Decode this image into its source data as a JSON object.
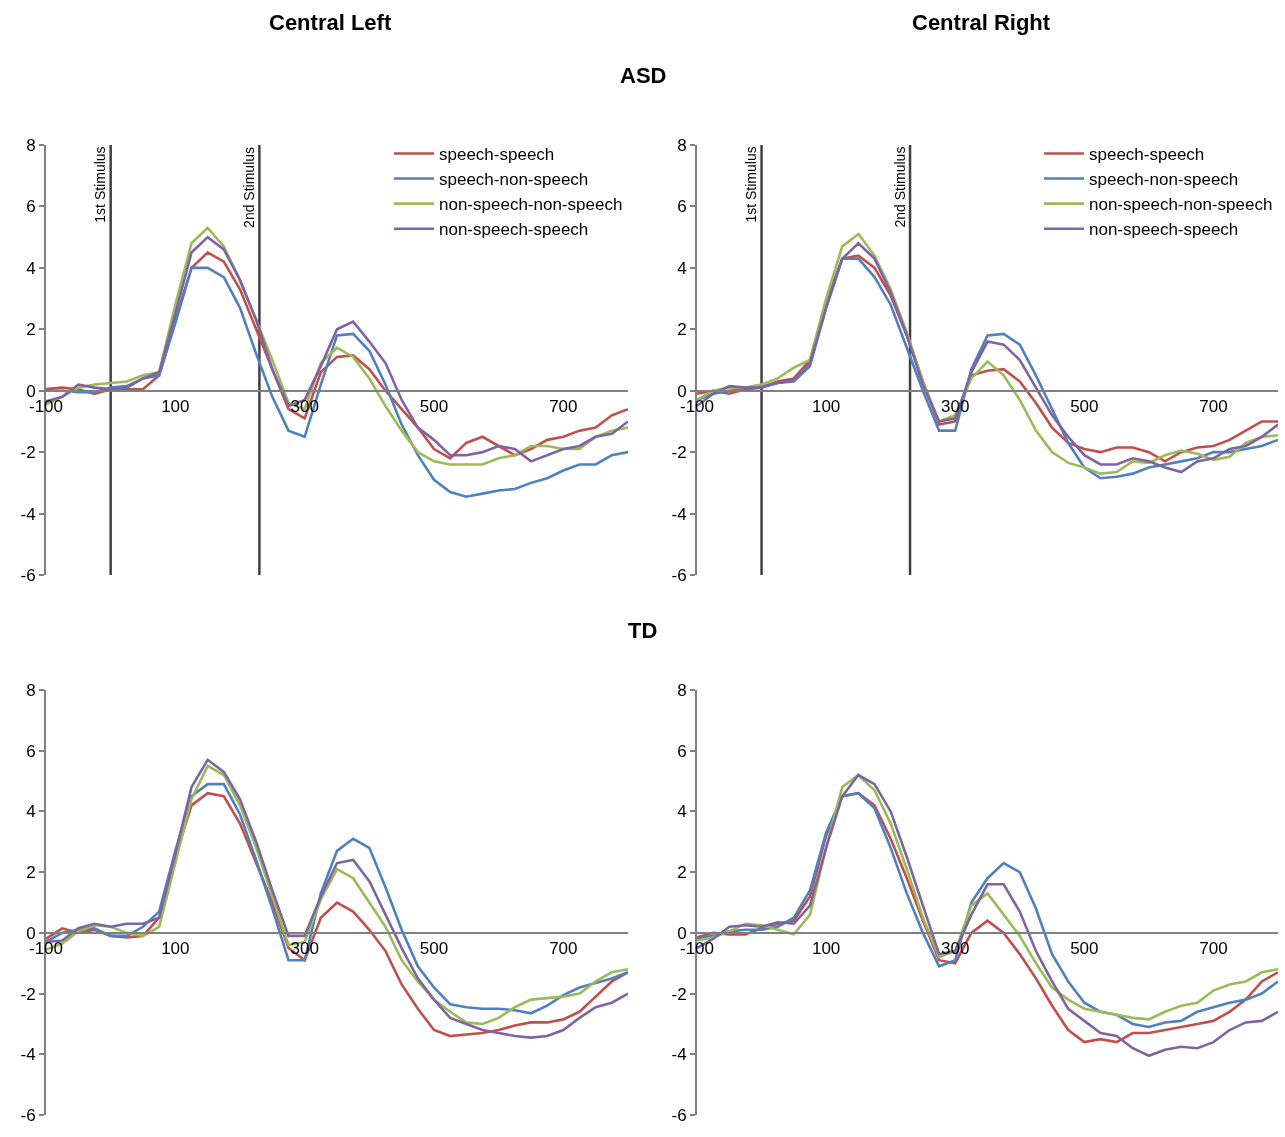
{
  "chart_data": [
    {
      "type": "line",
      "title": "Central Left",
      "subtitle": "ASD",
      "legend": "top right",
      "x": [
        -100,
        -75,
        -50,
        -25,
        0,
        25,
        50,
        75,
        100,
        125,
        150,
        175,
        200,
        225,
        250,
        275,
        300,
        325,
        350,
        375,
        400,
        425,
        450,
        475,
        500,
        525,
        550,
        575,
        600,
        625,
        650,
        675,
        700,
        725,
        750,
        775,
        800
      ],
      "xlim": [
        -100,
        800
      ],
      "xticks": [
        -100,
        100,
        300,
        500,
        700
      ],
      "ylim": [
        -6,
        8
      ],
      "yticks": [
        -6,
        -4,
        -2,
        0,
        2,
        4,
        6,
        8
      ],
      "ref_lines": [
        {
          "axis": "x",
          "value": 0,
          "label": "1st Stimulus",
          "color": "#404040"
        },
        {
          "axis": "x",
          "value": 230,
          "label": "2nd Stimulus",
          "color": "#404040"
        }
      ],
      "series": [
        {
          "name": "speech-speech",
          "color": "#c0504d",
          "values": [
            0.05,
            0.1,
            0.05,
            -0.1,
            0.05,
            0.05,
            0.05,
            0.5,
            2.3,
            4.0,
            4.5,
            4.2,
            3.3,
            2.0,
            0.7,
            -0.6,
            -0.9,
            0.6,
            1.1,
            1.15,
            0.7,
            0.0,
            -0.6,
            -1.2,
            -1.9,
            -2.2,
            -1.7,
            -1.5,
            -1.8,
            -2.1,
            -1.9,
            -1.6,
            -1.5,
            -1.3,
            -1.2,
            -0.8,
            -0.6
          ]
        },
        {
          "name": "speech-non-speech",
          "color": "#4f81bd",
          "values": [
            0.0,
            0.0,
            -0.05,
            -0.05,
            0.1,
            0.15,
            0.4,
            0.5,
            2.2,
            4.0,
            4.0,
            3.7,
            2.7,
            1.2,
            -0.2,
            -1.3,
            -1.5,
            0.2,
            1.8,
            1.85,
            1.3,
            0.2,
            -1.1,
            -2.1,
            -2.9,
            -3.3,
            -3.45,
            -3.35,
            -3.25,
            -3.2,
            -3.0,
            -2.85,
            -2.6,
            -2.4,
            -2.4,
            -2.1,
            -2.0
          ]
        },
        {
          "name": "non-speech-non-speech",
          "color": "#9bbb59",
          "values": [
            -0.45,
            -0.2,
            0.1,
            0.2,
            0.25,
            0.3,
            0.5,
            0.6,
            2.8,
            4.8,
            5.3,
            4.7,
            3.6,
            2.3,
            1.0,
            -0.4,
            -0.6,
            0.9,
            1.4,
            1.1,
            0.4,
            -0.5,
            -1.3,
            -2.0,
            -2.3,
            -2.4,
            -2.4,
            -2.4,
            -2.2,
            -2.1,
            -1.8,
            -1.8,
            -1.9,
            -1.9,
            -1.5,
            -1.3,
            -1.2
          ]
        },
        {
          "name": "non-speech-speech",
          "color": "#8064a2",
          "values": [
            -0.35,
            -0.2,
            0.2,
            0.1,
            0.05,
            0.1,
            0.4,
            0.6,
            2.5,
            4.5,
            5.0,
            4.6,
            3.6,
            2.3,
            0.7,
            -0.5,
            -0.3,
            0.8,
            2.0,
            2.25,
            1.6,
            0.9,
            -0.3,
            -1.2,
            -1.6,
            -2.1,
            -2.1,
            -2.0,
            -1.8,
            -1.9,
            -2.3,
            -2.1,
            -1.9,
            -1.8,
            -1.5,
            -1.4,
            -1.0
          ]
        }
      ]
    },
    {
      "type": "line",
      "title": "Central Right",
      "legend": "top right",
      "x": [
        -100,
        -75,
        -50,
        -25,
        0,
        25,
        50,
        75,
        100,
        125,
        150,
        175,
        200,
        225,
        250,
        275,
        300,
        325,
        350,
        375,
        400,
        425,
        450,
        475,
        500,
        525,
        550,
        575,
        600,
        625,
        650,
        675,
        700,
        725,
        750,
        775,
        800
      ],
      "xlim": [
        -100,
        800
      ],
      "xticks": [
        -100,
        100,
        300,
        500,
        700
      ],
      "ylim": [
        -6,
        8
      ],
      "yticks": [
        -6,
        -4,
        -2,
        0,
        2,
        4,
        6,
        8
      ],
      "ref_lines": [
        {
          "axis": "x",
          "value": 0,
          "label": "1st Stimulus",
          "color": "#404040"
        },
        {
          "axis": "x",
          "value": 230,
          "label": "2nd Stimulus",
          "color": "#404040"
        }
      ],
      "series": [
        {
          "name": "speech-speech",
          "color": "#c0504d",
          "values": [
            -0.1,
            0.0,
            -0.1,
            0.05,
            0.1,
            0.3,
            0.4,
            1.0,
            2.9,
            4.3,
            4.4,
            4.0,
            3.1,
            1.8,
            0.3,
            -1.1,
            -1.0,
            0.5,
            0.65,
            0.7,
            0.3,
            -0.4,
            -1.2,
            -1.7,
            -1.9,
            -2.0,
            -1.85,
            -1.85,
            -2.0,
            -2.3,
            -2.0,
            -1.85,
            -1.8,
            -1.6,
            -1.3,
            -1.0,
            -1.0
          ]
        },
        {
          "name": "speech-non-speech",
          "color": "#4f81bd",
          "values": [
            -0.3,
            -0.1,
            0.0,
            0.05,
            0.15,
            0.25,
            0.3,
            0.8,
            2.7,
            4.3,
            4.3,
            3.7,
            2.8,
            1.4,
            0.0,
            -1.3,
            -1.3,
            0.7,
            1.8,
            1.85,
            1.5,
            0.5,
            -0.6,
            -1.7,
            -2.5,
            -2.85,
            -2.8,
            -2.7,
            -2.5,
            -2.4,
            -2.3,
            -2.2,
            -2.0,
            -2.0,
            -1.9,
            -1.8,
            -1.6
          ]
        },
        {
          "name": "non-speech-non-speech",
          "color": "#9bbb59",
          "values": [
            -0.3,
            0.0,
            0.1,
            0.1,
            0.2,
            0.4,
            0.75,
            1.0,
            3.0,
            4.7,
            5.1,
            4.4,
            3.3,
            1.9,
            0.3,
            -1.0,
            -0.8,
            0.4,
            0.95,
            0.5,
            -0.3,
            -1.3,
            -2.0,
            -2.35,
            -2.5,
            -2.7,
            -2.65,
            -2.3,
            -2.35,
            -2.1,
            -1.95,
            -2.05,
            -2.25,
            -2.15,
            -1.7,
            -1.5,
            -1.45
          ]
        },
        {
          "name": "non-speech-speech",
          "color": "#8064a2",
          "values": [
            -0.5,
            -0.1,
            0.15,
            0.1,
            0.1,
            0.25,
            0.35,
            0.9,
            2.7,
            4.3,
            4.8,
            4.3,
            3.2,
            1.8,
            0.2,
            -1.0,
            -0.9,
            0.6,
            1.6,
            1.5,
            1.0,
            0.1,
            -0.8,
            -1.5,
            -2.1,
            -2.4,
            -2.4,
            -2.2,
            -2.3,
            -2.5,
            -2.65,
            -2.3,
            -2.2,
            -1.9,
            -1.8,
            -1.5,
            -1.1
          ]
        }
      ]
    },
    {
      "type": "line",
      "title": "TD",
      "x": [
        -100,
        -75,
        -50,
        -25,
        0,
        25,
        50,
        75,
        100,
        125,
        150,
        175,
        200,
        225,
        250,
        275,
        300,
        325,
        350,
        375,
        400,
        425,
        450,
        475,
        500,
        525,
        550,
        575,
        600,
        625,
        650,
        675,
        700,
        725,
        750,
        775,
        800
      ],
      "xlim": [
        -100,
        800
      ],
      "xticks": [
        -100,
        100,
        300,
        500,
        700
      ],
      "ylim": [
        -6,
        8
      ],
      "yticks": [
        -6,
        -4,
        -2,
        0,
        2,
        4,
        6,
        8
      ],
      "series": [
        {
          "color": "#c0504d",
          "values": [
            -0.2,
            0.15,
            0.0,
            0.1,
            -0.1,
            -0.15,
            -0.1,
            0.5,
            2.5,
            4.2,
            4.6,
            4.5,
            3.6,
            2.3,
            1.0,
            -0.5,
            -0.9,
            0.5,
            1.0,
            0.7,
            0.1,
            -0.6,
            -1.7,
            -2.5,
            -3.2,
            -3.4,
            -3.35,
            -3.3,
            -3.2,
            -3.05,
            -2.95,
            -2.95,
            -2.85,
            -2.6,
            -2.1,
            -1.6,
            -1.3
          ]
        },
        {
          "color": "#4f81bd",
          "values": [
            -0.3,
            0.0,
            0.1,
            0.15,
            -0.1,
            -0.1,
            0.2,
            0.7,
            2.7,
            4.5,
            4.9,
            4.9,
            3.9,
            2.4,
            0.8,
            -0.9,
            -0.9,
            1.3,
            2.7,
            3.1,
            2.8,
            1.5,
            0.1,
            -1.1,
            -1.8,
            -2.35,
            -2.45,
            -2.5,
            -2.5,
            -2.55,
            -2.65,
            -2.4,
            -2.05,
            -1.8,
            -1.65,
            -1.5,
            -1.3
          ]
        },
        {
          "color": "#9bbb59",
          "values": [
            -0.55,
            -0.35,
            0.05,
            0.25,
            0.2,
            0.0,
            -0.1,
            0.2,
            2.3,
            4.4,
            5.5,
            5.2,
            4.2,
            2.8,
            1.2,
            -0.4,
            -0.3,
            1.1,
            2.1,
            1.8,
            1.0,
            0.2,
            -0.9,
            -1.6,
            -2.2,
            -2.6,
            -2.95,
            -3.0,
            -2.8,
            -2.45,
            -2.2,
            -2.15,
            -2.1,
            -2.0,
            -1.6,
            -1.3,
            -1.2
          ]
        },
        {
          "color": "#8064a2",
          "values": [
            -0.3,
            -0.25,
            0.15,
            0.3,
            0.2,
            0.3,
            0.3,
            0.5,
            2.6,
            4.8,
            5.7,
            5.3,
            4.4,
            3.0,
            1.4,
            -0.1,
            -0.1,
            1.2,
            2.3,
            2.4,
            1.7,
            0.6,
            -0.5,
            -1.5,
            -2.2,
            -2.8,
            -3.0,
            -3.2,
            -3.3,
            -3.4,
            -3.45,
            -3.4,
            -3.2,
            -2.8,
            -2.45,
            -2.3,
            -2.0
          ]
        }
      ]
    },
    {
      "type": "line",
      "x": [
        -100,
        -75,
        -50,
        -25,
        0,
        25,
        50,
        75,
        100,
        125,
        150,
        175,
        200,
        225,
        250,
        275,
        300,
        325,
        350,
        375,
        400,
        425,
        450,
        475,
        500,
        525,
        550,
        575,
        600,
        625,
        650,
        675,
        700,
        725,
        750,
        775,
        800
      ],
      "xlim": [
        -100,
        800
      ],
      "xticks": [
        -100,
        100,
        300,
        500,
        700
      ],
      "ylim": [
        -6,
        8
      ],
      "yticks": [
        -6,
        -4,
        -2,
        0,
        2,
        4,
        6,
        8
      ],
      "series": [
        {
          "color": "#c0504d",
          "values": [
            -0.15,
            0.0,
            -0.05,
            -0.05,
            0.15,
            0.3,
            0.4,
            1.2,
            3.2,
            4.5,
            4.6,
            4.2,
            3.1,
            1.8,
            0.4,
            -0.9,
            -1.0,
            0.0,
            0.4,
            0.0,
            -0.7,
            -1.5,
            -2.4,
            -3.2,
            -3.6,
            -3.5,
            -3.6,
            -3.3,
            -3.3,
            -3.2,
            -3.1,
            -3.0,
            -2.9,
            -2.6,
            -2.2,
            -1.6,
            -1.3
          ]
        },
        {
          "color": "#4f81bd",
          "values": [
            -0.2,
            -0.1,
            0.05,
            0.1,
            0.1,
            0.2,
            0.5,
            1.4,
            3.3,
            4.5,
            4.6,
            4.1,
            2.8,
            1.3,
            0.0,
            -1.1,
            -0.9,
            1.0,
            1.8,
            2.3,
            2.0,
            0.8,
            -0.7,
            -1.6,
            -2.3,
            -2.6,
            -2.7,
            -3.0,
            -3.1,
            -2.95,
            -2.9,
            -2.6,
            -2.45,
            -2.3,
            -2.2,
            -2.0,
            -1.6
          ]
        },
        {
          "color": "#9bbb59",
          "values": [
            -0.25,
            -0.15,
            0.05,
            0.3,
            0.25,
            0.1,
            -0.05,
            0.6,
            2.8,
            4.8,
            5.2,
            4.7,
            3.6,
            2.1,
            0.5,
            -0.8,
            -0.6,
            0.9,
            1.3,
            0.6,
            -0.1,
            -1.0,
            -1.8,
            -2.2,
            -2.5,
            -2.6,
            -2.7,
            -2.8,
            -2.85,
            -2.6,
            -2.4,
            -2.3,
            -1.9,
            -1.7,
            -1.6,
            -1.3,
            -1.2
          ]
        },
        {
          "color": "#8064a2",
          "values": [
            -0.5,
            -0.2,
            0.2,
            0.25,
            0.2,
            0.35,
            0.3,
            0.9,
            2.8,
            4.5,
            5.2,
            4.9,
            4.0,
            2.5,
            0.9,
            -0.7,
            -0.6,
            0.6,
            1.6,
            1.6,
            0.7,
            -0.6,
            -1.6,
            -2.5,
            -2.9,
            -3.3,
            -3.4,
            -3.8,
            -4.05,
            -3.85,
            -3.75,
            -3.8,
            -3.6,
            -3.2,
            -2.95,
            -2.9,
            -2.6
          ]
        }
      ]
    }
  ]
}
